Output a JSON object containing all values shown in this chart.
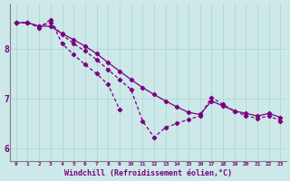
{
  "hours": [
    0,
    1,
    2,
    3,
    4,
    5,
    6,
    7,
    8,
    9,
    10,
    11,
    12,
    13,
    14,
    15,
    16,
    17,
    18,
    19,
    20,
    21,
    22,
    23
  ],
  "line_top": [
    8.52,
    8.52,
    8.45,
    8.45,
    8.3,
    8.18,
    8.05,
    7.9,
    7.72,
    7.55,
    7.38,
    7.22,
    7.08,
    6.95,
    6.83,
    6.72,
    6.68,
    6.95,
    6.85,
    6.75,
    6.7,
    6.65,
    6.7,
    6.62
  ],
  "line_mid": [
    8.52,
    8.52,
    8.45,
    8.52,
    8.28,
    8.1,
    7.95,
    7.78,
    7.58,
    7.38,
    7.18,
    6.55,
    6.22,
    6.42,
    6.5,
    6.58,
    6.65,
    7.02,
    6.88,
    6.75,
    6.65,
    6.6,
    6.65,
    6.55
  ],
  "line_short_x": [
    0,
    1,
    2,
    3,
    4,
    5,
    6,
    7,
    8,
    9
  ],
  "line_short_y": [
    8.52,
    8.52,
    8.42,
    8.58,
    8.1,
    7.88,
    7.68,
    7.5,
    7.28,
    6.78
  ],
  "line_color": "#7b0080",
  "bg_color": "#cce8e8",
  "grid_color": "#aad4d4",
  "xlabel": "Windchill (Refroidissement éolien,°C)",
  "ylim": [
    5.75,
    8.9
  ],
  "xlim": [
    -0.5,
    23.5
  ],
  "yticks": [
    6,
    7,
    8
  ],
  "xticks": [
    0,
    1,
    2,
    3,
    4,
    5,
    6,
    7,
    8,
    9,
    10,
    11,
    12,
    13,
    14,
    15,
    16,
    17,
    18,
    19,
    20,
    21,
    22,
    23
  ]
}
